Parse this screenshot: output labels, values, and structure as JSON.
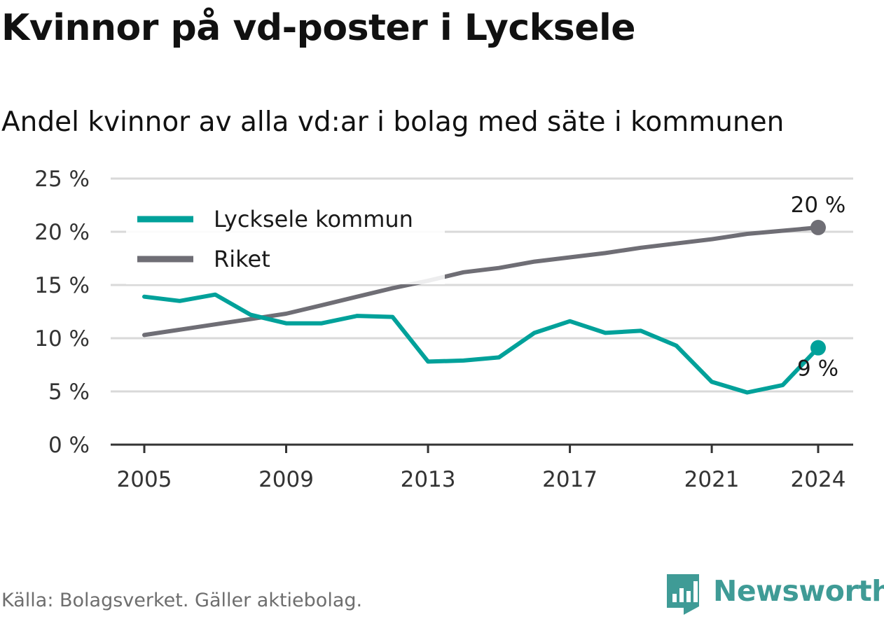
{
  "title": "Kvinnor på vd-poster i Lycksele",
  "subtitle": "Andel kvinnor av alla vd:ar i bolag med säte i kommunen",
  "source": "Källa: Bolagsverket. Gäller aktiebolag.",
  "brand": "Newsworthy",
  "colors": {
    "lycksele": "#00a19a",
    "riket": "#6f6e75",
    "grid": "#d9d9d9",
    "axis": "#333333",
    "brand": "#3f9b96"
  },
  "chart_data": {
    "type": "line",
    "x": [
      2005,
      2006,
      2007,
      2008,
      2009,
      2010,
      2011,
      2012,
      2013,
      2014,
      2015,
      2016,
      2017,
      2018,
      2019,
      2020,
      2021,
      2022,
      2023,
      2024
    ],
    "series": [
      {
        "name": "Lycksele kommun",
        "color": "#00a19a",
        "values": [
          13.9,
          13.5,
          14.1,
          12.2,
          11.4,
          11.4,
          12.1,
          12.0,
          7.8,
          7.9,
          8.2,
          10.5,
          11.6,
          10.5,
          10.7,
          9.3,
          5.9,
          4.9,
          5.6,
          9.1
        ],
        "end_label": "9 %"
      },
      {
        "name": "Riket",
        "color": "#6f6e75",
        "values": [
          10.3,
          10.8,
          11.3,
          11.8,
          12.3,
          13.1,
          13.9,
          14.7,
          15.4,
          16.2,
          16.6,
          17.2,
          17.6,
          18.0,
          18.5,
          18.9,
          19.3,
          19.8,
          20.1,
          20.4
        ],
        "end_label": "20 %"
      }
    ],
    "x_ticks": [
      2005,
      2009,
      2013,
      2017,
      2021,
      2024
    ],
    "x_tick_labels": [
      "2005",
      "2009",
      "2013",
      "2017",
      "2021",
      "2024"
    ],
    "y_ticks": [
      0,
      5,
      10,
      15,
      20,
      25
    ],
    "y_tick_labels": [
      "0 %",
      "5 %",
      "10 %",
      "15 %",
      "20 %",
      "25 %"
    ],
    "ylim": [
      0,
      25
    ],
    "xlim": [
      2005,
      2024
    ],
    "grid": "horizontal",
    "legend_position": "top-left"
  }
}
